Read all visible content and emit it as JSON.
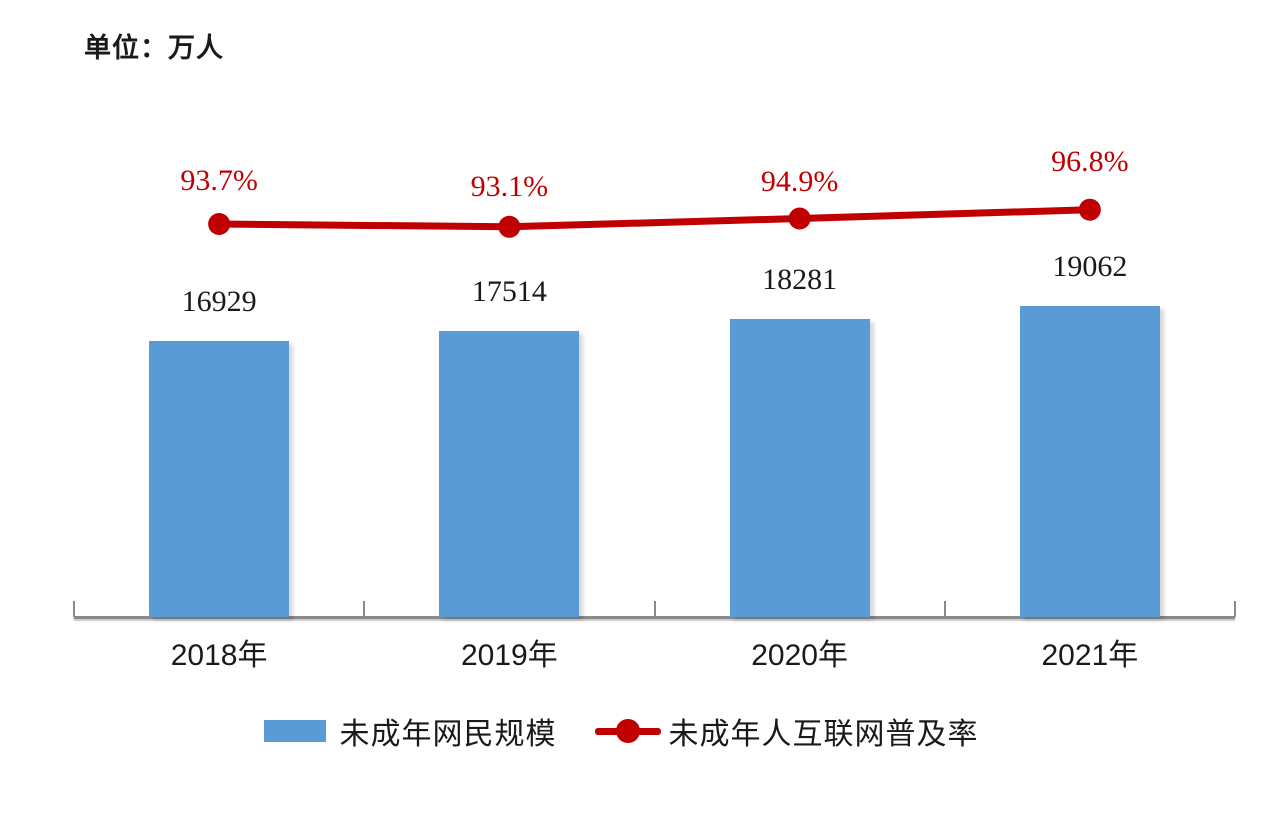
{
  "unit_label": "单位：万人",
  "chart_data": {
    "type": "bar",
    "combo": "bar series with overlaid line series (dual measure, no visible y-axes)",
    "title": "",
    "unit": "单位：万人",
    "xlabel": "",
    "ylabel": "",
    "categories": [
      "2018年",
      "2019年",
      "2020年",
      "2021年"
    ],
    "series": [
      {
        "name": "未成年网民规模",
        "type": "bar",
        "color": "#5B9BD5",
        "values": [
          16929,
          17514,
          18281,
          19062
        ],
        "value_labels": [
          "16929",
          "17514",
          "18281",
          "19062"
        ],
        "value_label_color": "#000000",
        "baseline": 0
      },
      {
        "name": "未成年人互联网普及率",
        "type": "line",
        "color": "#C00000",
        "marker": "circle",
        "values": [
          93.7,
          93.1,
          94.9,
          96.8
        ],
        "value_labels": [
          "93.7%",
          "93.1%",
          "94.9%",
          "96.8%"
        ],
        "value_label_color": "#C00000"
      }
    ],
    "legend_position": "bottom",
    "grid": false,
    "axis_color": "#8A8A8A",
    "background": "#FFFFFF"
  }
}
